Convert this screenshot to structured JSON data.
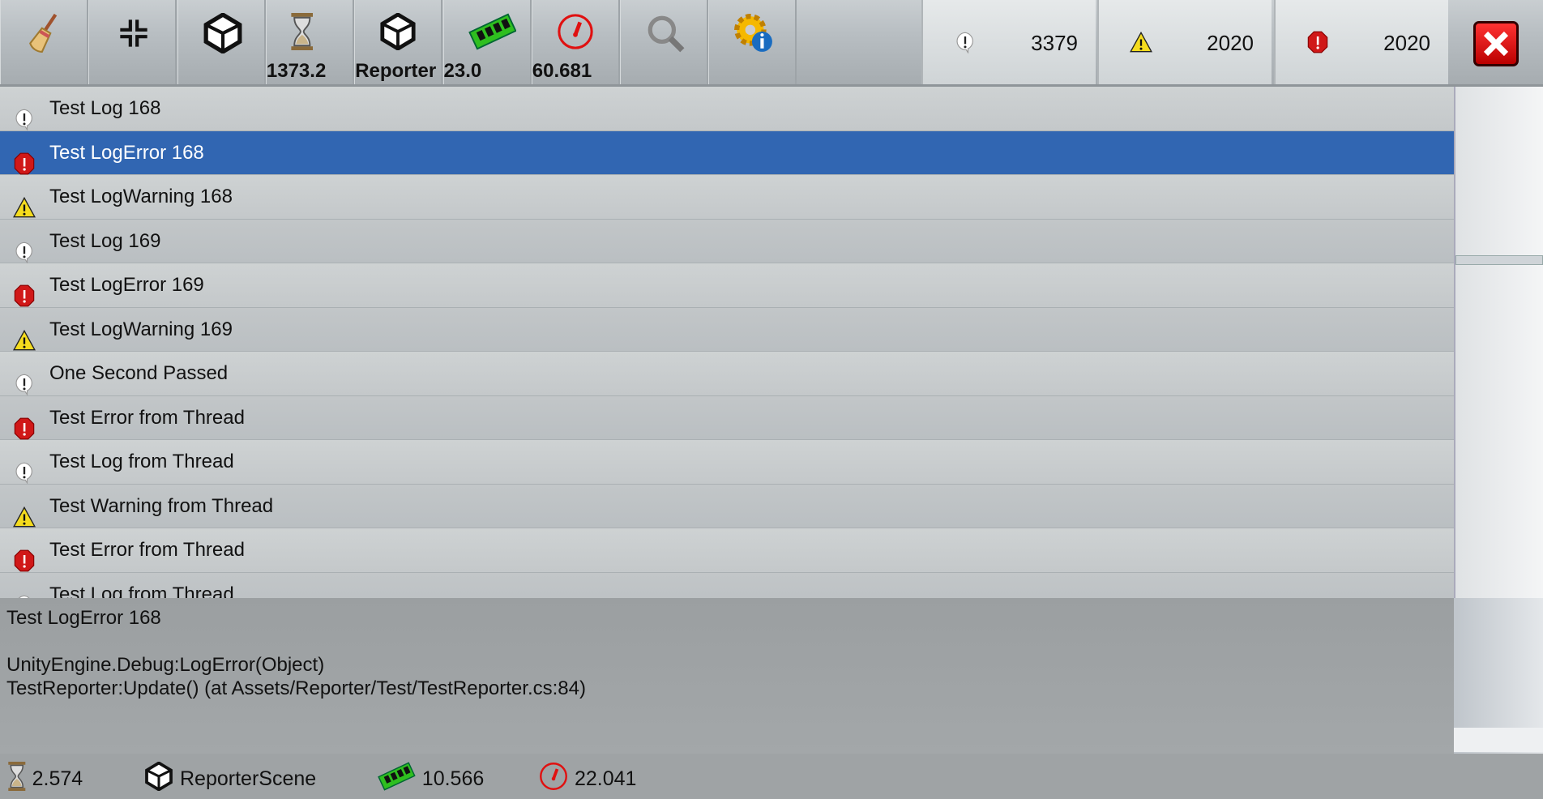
{
  "toolbar": {
    "buttons": [
      {
        "name": "clear",
        "icon": "broom-icon"
      },
      {
        "name": "collapse",
        "icon": "collapse-arrows-icon"
      },
      {
        "name": "clear-on-new-scene",
        "icon": "unity-broom-icon"
      },
      {
        "name": "time",
        "icon": "hourglass-icon",
        "value": "1373.2"
      },
      {
        "name": "scene",
        "icon": "unity-icon",
        "value": "Reporter"
      },
      {
        "name": "memory",
        "icon": "ram-icon",
        "value": "23.0"
      },
      {
        "name": "fps",
        "icon": "speedometer-icon",
        "value": "60.681"
      },
      {
        "name": "search",
        "icon": "search-icon"
      },
      {
        "name": "info",
        "icon": "gear-info-icon"
      }
    ],
    "counts": {
      "log": "3379",
      "warning": "2020",
      "error": "2020"
    }
  },
  "logs": [
    {
      "type": "log",
      "text": "Test Log 168"
    },
    {
      "type": "error",
      "text": "Test LogError 168",
      "selected": true
    },
    {
      "type": "warning",
      "text": "Test LogWarning 168"
    },
    {
      "type": "log",
      "text": "Test Log 169"
    },
    {
      "type": "error",
      "text": "Test LogError 169"
    },
    {
      "type": "warning",
      "text": "Test LogWarning 169"
    },
    {
      "type": "log",
      "text": "One Second Passed"
    },
    {
      "type": "error",
      "text": "Test Error from Thread"
    },
    {
      "type": "log",
      "text": "Test Log from Thread"
    },
    {
      "type": "warning",
      "text": "Test Warning from Thread"
    },
    {
      "type": "error",
      "text": "Test Error from Thread"
    },
    {
      "type": "log",
      "text": "Test Log from Thread"
    }
  ],
  "detail": {
    "text": "Test LogError 168\n\nUnityEngine.Debug:LogError(Object)\nTestReporter:Update() (at Assets/Reporter/Test/TestReporter.cs:84)"
  },
  "status": {
    "time": "2.574",
    "scene": "ReporterScene",
    "memory": "10.566",
    "fps": "22.041"
  },
  "colors": {
    "selected": "#3166b2",
    "error": "#d01818",
    "warning": "#f5dc1e"
  }
}
